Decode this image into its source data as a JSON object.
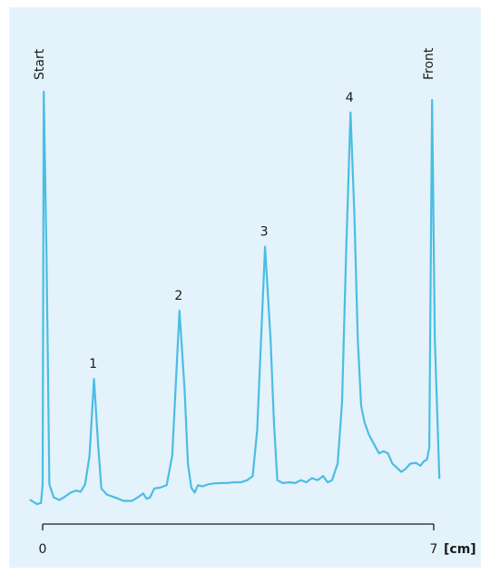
{
  "chart_data": {
    "type": "line",
    "title": "",
    "xlabel": "",
    "ylabel": "",
    "x_unit": "[cm]",
    "xlim": [
      0,
      7
    ],
    "ylim": [
      0,
      100
    ],
    "x_ticks": [
      {
        "value": 0,
        "label": "0"
      },
      {
        "value": 7,
        "label": "7"
      }
    ],
    "grid": false,
    "line_color": "#4bbde3",
    "axis_color": "#1a1a1a",
    "background": "#e3f2fb",
    "markers": [
      {
        "label": "Start",
        "x": 0
      },
      {
        "label": "Front",
        "x": 6.97
      }
    ],
    "peak_labels": [
      {
        "label": "1",
        "x": 0.92,
        "y": 30.5
      },
      {
        "label": "2",
        "x": 2.45,
        "y": 47.0
      },
      {
        "label": "3",
        "x": 3.98,
        "y": 62.5
      },
      {
        "label": "4",
        "x": 5.51,
        "y": 95.0
      }
    ],
    "series": [
      {
        "values": [
          [
            -0.22,
            1.2
          ],
          [
            -0.1,
            0.2
          ],
          [
            -0.03,
            0.5
          ],
          [
            0.0,
            5.0
          ],
          [
            0.02,
            100.0
          ],
          [
            0.07,
            60.0
          ],
          [
            0.12,
            5.0
          ],
          [
            0.2,
            1.8
          ],
          [
            0.3,
            1.2
          ],
          [
            0.4,
            2.0
          ],
          [
            0.5,
            3.0
          ],
          [
            0.6,
            3.5
          ],
          [
            0.68,
            3.2
          ],
          [
            0.76,
            5.0
          ],
          [
            0.84,
            12.0
          ],
          [
            0.92,
            30.5
          ],
          [
            0.99,
            15.0
          ],
          [
            1.05,
            4.0
          ],
          [
            1.15,
            2.5
          ],
          [
            1.3,
            1.8
          ],
          [
            1.45,
            1.0
          ],
          [
            1.6,
            1.0
          ],
          [
            1.72,
            2.0
          ],
          [
            1.8,
            2.8
          ],
          [
            1.86,
            1.5
          ],
          [
            1.92,
            1.8
          ],
          [
            2.0,
            4.0
          ],
          [
            2.1,
            4.2
          ],
          [
            2.22,
            4.8
          ],
          [
            2.32,
            12.0
          ],
          [
            2.45,
            47.0
          ],
          [
            2.54,
            28.0
          ],
          [
            2.6,
            10.0
          ],
          [
            2.66,
            4.2
          ],
          [
            2.72,
            3.0
          ],
          [
            2.78,
            4.8
          ],
          [
            2.86,
            4.5
          ],
          [
            2.96,
            5.0
          ],
          [
            3.06,
            5.2
          ],
          [
            3.18,
            5.3
          ],
          [
            3.3,
            5.3
          ],
          [
            3.42,
            5.5
          ],
          [
            3.55,
            5.5
          ],
          [
            3.66,
            6.0
          ],
          [
            3.76,
            7.0
          ],
          [
            3.84,
            18.0
          ],
          [
            3.98,
            62.5
          ],
          [
            4.08,
            40.0
          ],
          [
            4.14,
            20.0
          ],
          [
            4.2,
            6.0
          ],
          [
            4.3,
            5.3
          ],
          [
            4.42,
            5.5
          ],
          [
            4.52,
            5.3
          ],
          [
            4.62,
            6.0
          ],
          [
            4.72,
            5.5
          ],
          [
            4.82,
            6.5
          ],
          [
            4.92,
            6.0
          ],
          [
            5.02,
            7.0
          ],
          [
            5.1,
            5.5
          ],
          [
            5.18,
            6.0
          ],
          [
            5.28,
            10.0
          ],
          [
            5.36,
            25.0
          ],
          [
            5.43,
            60.0
          ],
          [
            5.51,
            95.0
          ],
          [
            5.58,
            70.0
          ],
          [
            5.64,
            40.0
          ],
          [
            5.7,
            24.0
          ],
          [
            5.76,
            20.0
          ],
          [
            5.84,
            17.0
          ],
          [
            5.92,
            15.0
          ],
          [
            6.02,
            12.5
          ],
          [
            6.1,
            13.0
          ],
          [
            6.18,
            12.5
          ],
          [
            6.26,
            10.0
          ],
          [
            6.34,
            9.0
          ],
          [
            6.42,
            8.0
          ],
          [
            6.5,
            8.8
          ],
          [
            6.58,
            10.0
          ],
          [
            6.68,
            10.2
          ],
          [
            6.76,
            9.5
          ],
          [
            6.82,
            10.5
          ],
          [
            6.88,
            11.0
          ],
          [
            6.92,
            14.0
          ],
          [
            6.97,
            98.0
          ],
          [
            7.02,
            40.0
          ],
          [
            7.1,
            6.5
          ]
        ]
      }
    ]
  }
}
